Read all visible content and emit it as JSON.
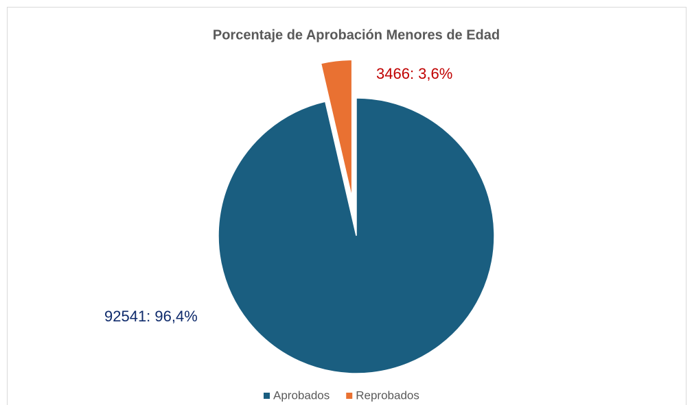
{
  "chart_data": {
    "type": "pie",
    "title": "Porcentaje de Aprobación Menores de Edad",
    "categories": [
      "Aprobados",
      "Reprobados"
    ],
    "values": [
      92541,
      3466
    ],
    "value_labels": [
      "92541: 96,4%",
      "3466: 3,6%"
    ],
    "colors": [
      "#1a5e80",
      "#e97132"
    ],
    "label_colors": [
      "#0e2a6b",
      "#c00000"
    ],
    "legend": "bottom"
  }
}
